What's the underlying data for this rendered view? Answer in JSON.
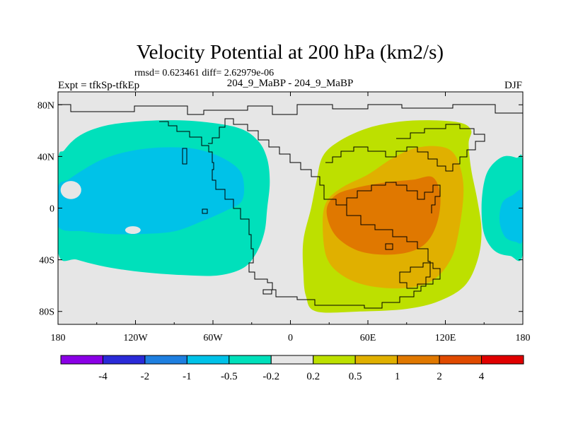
{
  "chart_data": {
    "type": "heatmap",
    "title": "Velocity Potential at 200 hPa (km2/s)",
    "stats": "rmsd= 0.623461 diff= 2.62979e-06",
    "left_label": "Expt = tfkSp-tfkEp",
    "center_label": "204_9_MaBP - 204_9_MaBP",
    "right_label": "DJF",
    "xlim": [
      -180,
      180
    ],
    "ylim": [
      -90,
      90
    ],
    "x_ticks": [
      {
        "value": -180,
        "label": "180"
      },
      {
        "value": -120,
        "label": "120W"
      },
      {
        "value": -60,
        "label": "60W"
      },
      {
        "value": 0,
        "label": "0"
      },
      {
        "value": 60,
        "label": "60E"
      },
      {
        "value": 120,
        "label": "120E"
      },
      {
        "value": 180,
        "label": "180"
      }
    ],
    "y_ticks": [
      {
        "value": 80,
        "label": "80N"
      },
      {
        "value": 40,
        "label": "40N"
      },
      {
        "value": 0,
        "label": "0"
      },
      {
        "value": -40,
        "label": "40S"
      },
      {
        "value": -80,
        "label": "80S"
      }
    ],
    "colorbar": {
      "levels": [
        "-4",
        "-2",
        "-1",
        "-0.5",
        "-0.2",
        "0.2",
        "0.5",
        "1",
        "2",
        "4"
      ],
      "colors": [
        "#8a00e6",
        "#2a2ad8",
        "#1e7fe0",
        "#00c2e8",
        "#00e0bb",
        "#e6e6e6",
        "#bde000",
        "#e0b000",
        "#e07800",
        "#e04a00",
        "#e00000"
      ]
    },
    "fields": [
      {
        "name": "negative-cell-west",
        "level": "-0.2 to -0.5",
        "color": "#00e0bb",
        "outline": [
          [
            -180,
            35
          ],
          [
            -175,
            45
          ],
          [
            -165,
            55
          ],
          [
            -150,
            62
          ],
          [
            -130,
            66
          ],
          [
            -100,
            68
          ],
          [
            -70,
            67
          ],
          [
            -40,
            62
          ],
          [
            -25,
            52
          ],
          [
            -18,
            38
          ],
          [
            -16,
            20
          ],
          [
            -18,
            0
          ],
          [
            -20,
            -18
          ],
          [
            -26,
            -34
          ],
          [
            -36,
            -46
          ],
          [
            -55,
            -52
          ],
          [
            -80,
            -52
          ],
          [
            -110,
            -50
          ],
          [
            -140,
            -46
          ],
          [
            -165,
            -40
          ],
          [
            -180,
            -34
          ]
        ]
      },
      {
        "name": "negative-core-west",
        "level": "-0.5 to -1",
        "color": "#00c2e8",
        "outline": [
          [
            -180,
            -14
          ],
          [
            -180,
            16
          ],
          [
            -172,
            22
          ],
          [
            -160,
            30
          ],
          [
            -145,
            38
          ],
          [
            -125,
            44
          ],
          [
            -100,
            47
          ],
          [
            -75,
            46
          ],
          [
            -55,
            40
          ],
          [
            -40,
            30
          ],
          [
            -36,
            18
          ],
          [
            -38,
            5
          ],
          [
            -50,
            -2
          ],
          [
            -68,
            -10
          ],
          [
            -90,
            -18
          ],
          [
            -115,
            -20
          ],
          [
            -140,
            -20
          ],
          [
            -160,
            -18
          ]
        ]
      },
      {
        "name": "negative-cell-east",
        "level": "-0.2 to -0.5",
        "color": "#00e0bb",
        "outline": [
          [
            180,
            35
          ],
          [
            175,
            39
          ],
          [
            165,
            40
          ],
          [
            155,
            32
          ],
          [
            150,
            20
          ],
          [
            148,
            0
          ],
          [
            150,
            -20
          ],
          [
            158,
            -33
          ],
          [
            170,
            -37
          ],
          [
            180,
            -35
          ]
        ]
      },
      {
        "name": "negative-core-east",
        "level": "-0.5 to -1",
        "color": "#00c2e8",
        "outline": [
          [
            180,
            12
          ],
          [
            172,
            10
          ],
          [
            164,
            4
          ],
          [
            162,
            -10
          ],
          [
            166,
            -22
          ],
          [
            174,
            -26
          ],
          [
            180,
            -24
          ]
        ]
      },
      {
        "name": "positive-outer",
        "level": "0.2 to 0.5",
        "color": "#bde000",
        "outline": [
          [
            20,
            -80
          ],
          [
            55,
            -80
          ],
          [
            90,
            -78
          ],
          [
            115,
            -72
          ],
          [
            135,
            -60
          ],
          [
            145,
            -40
          ],
          [
            148,
            -18
          ],
          [
            145,
            5
          ],
          [
            140,
            30
          ],
          [
            138,
            50
          ],
          [
            140,
            60
          ],
          [
            132,
            66
          ],
          [
            110,
            68
          ],
          [
            85,
            67
          ],
          [
            60,
            62
          ],
          [
            38,
            52
          ],
          [
            25,
            40
          ],
          [
            20,
            20
          ],
          [
            16,
            0
          ],
          [
            10,
            -25
          ],
          [
            10,
            -50
          ],
          [
            12,
            -68
          ]
        ]
      },
      {
        "name": "positive-mid",
        "level": "0.5 to 1",
        "color": "#e0b000",
        "outline": [
          [
            25,
            -12
          ],
          [
            28,
            5
          ],
          [
            40,
            16
          ],
          [
            60,
            26
          ],
          [
            78,
            38
          ],
          [
            95,
            46
          ],
          [
            112,
            48
          ],
          [
            125,
            44
          ],
          [
            132,
            30
          ],
          [
            134,
            10
          ],
          [
            130,
            -20
          ],
          [
            124,
            -40
          ],
          [
            110,
            -56
          ],
          [
            88,
            -62
          ],
          [
            60,
            -60
          ],
          [
            40,
            -52
          ],
          [
            28,
            -38
          ]
        ]
      },
      {
        "name": "positive-core",
        "level": "1 to 2",
        "color": "#e07800",
        "outline": [
          [
            28,
            -2
          ],
          [
            35,
            10
          ],
          [
            52,
            16
          ],
          [
            75,
            20
          ],
          [
            95,
            22
          ],
          [
            110,
            24
          ],
          [
            116,
            10
          ],
          [
            114,
            -10
          ],
          [
            106,
            -26
          ],
          [
            92,
            -34
          ],
          [
            70,
            -36
          ],
          [
            50,
            -32
          ],
          [
            34,
            -20
          ]
        ]
      }
    ],
    "islands": [
      {
        "color": "#e6e6e6",
        "center": [
          -170,
          14
        ],
        "radius": [
          8,
          7
        ]
      },
      {
        "color": "#e6e6e6",
        "center": [
          -122,
          -17
        ],
        "radius": [
          6,
          3
        ]
      },
      {
        "color": "#e6e6e6",
        "center": [
          -7,
          19
        ],
        "radius": [
          5,
          4
        ]
      }
    ]
  }
}
